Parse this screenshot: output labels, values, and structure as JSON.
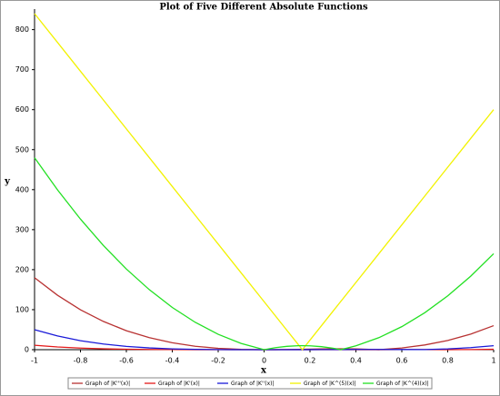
{
  "chart_data": {
    "type": "line",
    "title": "Plot of Five Different Absolute Functions",
    "x_label": "x",
    "y_label": "y",
    "x": [
      -1,
      -0.9,
      -0.8,
      -0.7,
      -0.6,
      -0.5,
      -0.4,
      -0.3,
      -0.2,
      -0.1,
      0,
      0.05,
      0.1,
      0.15,
      0.1667,
      0.2,
      0.25,
      0.3,
      0.3333,
      0.4,
      0.5,
      0.6,
      0.7,
      0.8,
      0.9,
      1
    ],
    "series": [
      {
        "name": "Graph of |K'''(x)|",
        "color": "#b83232",
        "values": [
          180,
          136.1,
          99.8,
          70.6,
          47.5,
          30,
          17.3,
          8.6,
          3.4,
          0.7,
          0,
          0.1,
          0.5,
          0.9,
          1.1,
          1.4,
          1.9,
          2.2,
          2.2,
          1.9,
          0,
          4.3,
          11.8,
          23.0,
          38.9,
          60
        ]
      },
      {
        "name": "Graph of |K'(x)|",
        "color": "#e41a1a",
        "values": [
          11,
          6.8,
          4.0,
          2.2,
          1.1,
          0.5,
          0.2,
          0.1,
          0,
          0,
          0,
          0,
          0,
          0,
          0,
          0,
          0,
          0,
          0,
          0.1,
          0.1,
          0.2,
          0.2,
          0.1,
          0.3,
          1
        ]
      },
      {
        "name": "Graph of |K''(x)|",
        "color": "#1a1ad8",
        "values": [
          50,
          34.3,
          22.5,
          14.1,
          8.2,
          4.4,
          2.0,
          0.8,
          0.2,
          0,
          0,
          0,
          0,
          0.1,
          0.1,
          0.1,
          0.2,
          0.3,
          0.4,
          0.5,
          0.6,
          0.4,
          0.3,
          2.0,
          5.1,
          10
        ]
      },
      {
        "name": "Graph of |K^(5)(x)|",
        "color": "#f2f200",
        "values": [
          840,
          768,
          696,
          624,
          552,
          480,
          408,
          336,
          264,
          192,
          120,
          84,
          48,
          12,
          0,
          24,
          60,
          96,
          120,
          168,
          240,
          312,
          384,
          456,
          528,
          600
        ]
      },
      {
        "name": "Graph of |K^(4)(x)|",
        "color": "#22e022",
        "values": [
          480,
          399.6,
          326.4,
          260.4,
          201.6,
          150,
          105.6,
          68.4,
          38.4,
          15.6,
          0,
          5.1,
          8.4,
          9.9,
          10,
          9.6,
          7.5,
          3.6,
          0,
          9.6,
          30,
          57.6,
          92.4,
          134.4,
          183.6,
          240
        ]
      }
    ],
    "xlim": [
      -1,
      1
    ],
    "xticks": [
      -1,
      -0.8,
      -0.6,
      -0.4,
      -0.2,
      0,
      0.2,
      0.4,
      0.6,
      0.8,
      1
    ],
    "ylim": [
      0,
      840
    ],
    "yticks": [
      0,
      100,
      200,
      300,
      400,
      500,
      600,
      700,
      800
    ],
    "grid": false,
    "legend": "bottom"
  }
}
